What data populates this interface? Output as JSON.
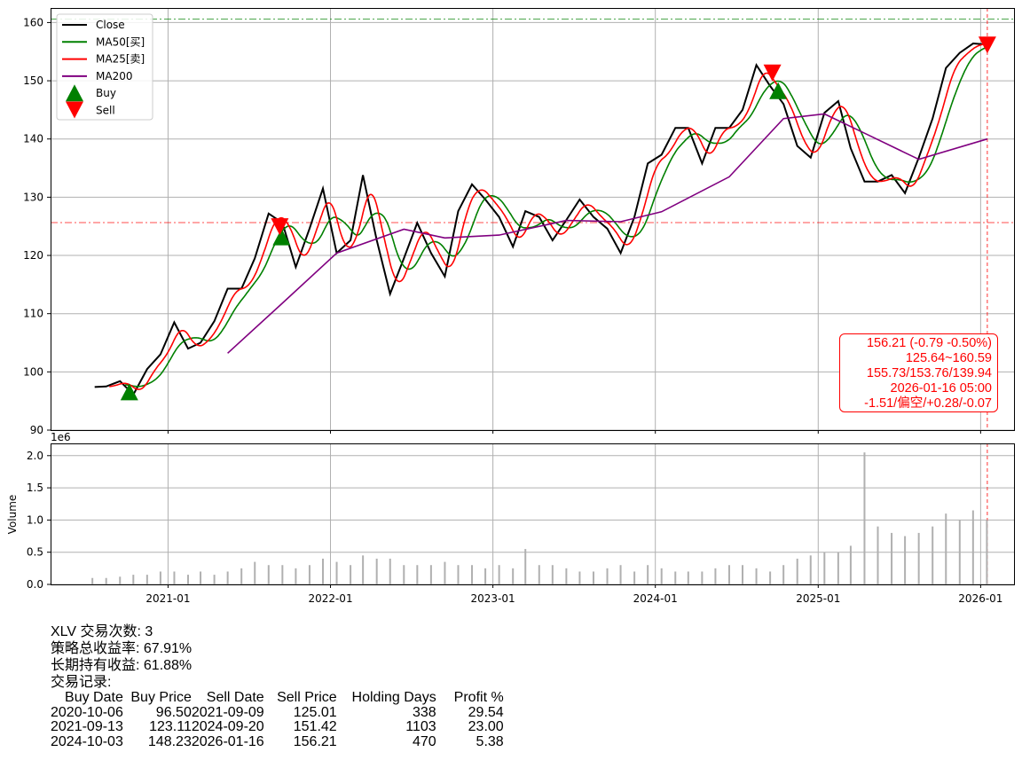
{
  "chart_data": [
    {
      "type": "line",
      "panel": "price",
      "xlim": [
        "2020-04-12",
        "2026-03-17"
      ],
      "ylim": [
        90,
        162.5
      ],
      "yticks": [
        90,
        100,
        110,
        120,
        130,
        140,
        150,
        160
      ],
      "xticks": [
        "2021-01",
        "2022-01",
        "2023-01",
        "2024-01",
        "2025-01",
        "2026-01"
      ],
      "grid": true,
      "legend_position": "top-left",
      "legend": [
        "Close",
        "MA50[买]",
        "MA25[卖]",
        "MA200",
        "Buy",
        "Sell"
      ],
      "colors": {
        "close": "#000000",
        "ma50": "#008000",
        "ma25": "#ff0000",
        "ma200": "#800080",
        "buy": "#008000",
        "sell": "#ff0000"
      },
      "close": {
        "x": [
          "2020-07-20",
          "2020-08-15",
          "2020-09-15",
          "2020-10-15",
          "2020-11-15",
          "2020-12-15",
          "2021-01-15",
          "2021-02-15",
          "2021-03-15",
          "2021-04-15",
          "2021-05-15",
          "2021-06-15",
          "2021-07-15",
          "2021-08-15",
          "2021-09-15",
          "2021-10-15",
          "2021-11-15",
          "2021-12-15",
          "2022-01-15",
          "2022-02-15",
          "2022-03-15",
          "2022-04-15",
          "2022-05-15",
          "2022-06-15",
          "2022-07-15",
          "2022-08-15",
          "2022-09-15",
          "2022-10-15",
          "2022-11-15",
          "2022-12-15",
          "2023-01-15",
          "2023-02-15",
          "2023-03-15",
          "2023-04-15",
          "2023-05-15",
          "2023-06-15",
          "2023-07-15",
          "2023-08-15",
          "2023-09-15",
          "2023-10-15",
          "2023-11-15",
          "2023-12-15",
          "2024-01-15",
          "2024-02-15",
          "2024-03-15",
          "2024-04-15",
          "2024-05-15",
          "2024-06-15",
          "2024-07-15",
          "2024-08-15",
          "2024-09-15",
          "2024-10-15",
          "2024-11-15",
          "2024-12-15",
          "2025-01-15",
          "2025-02-15",
          "2025-03-15",
          "2025-04-15",
          "2025-05-15",
          "2025-06-15",
          "2025-07-15",
          "2025-08-15",
          "2025-09-15",
          "2025-10-15",
          "2025-11-15",
          "2025-12-15",
          "2026-01-16"
        ],
        "y": [
          97.4,
          97.5,
          98.4,
          96.1,
          100.5,
          103,
          108.5,
          104,
          105,
          108.7,
          114.3,
          114.3,
          119.5,
          127.2,
          125.6,
          118,
          124.6,
          131.5,
          120.4,
          122.6,
          133.8,
          122.6,
          113.4,
          119.5,
          125.6,
          120.4,
          116.4,
          127.6,
          132.2,
          129.6,
          126.6,
          121.5,
          127.6,
          126.6,
          122.6,
          126.1,
          129.6,
          126.6,
          124.6,
          120.4,
          126.6,
          135.8,
          137.3,
          141.9,
          141.9,
          135.8,
          141.9,
          141.9,
          145,
          152.7,
          149.1,
          146,
          138.8,
          136.8,
          144.5,
          146.5,
          138.4,
          132.7,
          132.7,
          133.8,
          130.7,
          136.8,
          143.5,
          152.2,
          154.8,
          156.4,
          156.21
        ]
      },
      "ma200": {
        "x": [
          "2021-05-15",
          "2021-09-15",
          "2022-01-15",
          "2022-06-15",
          "2022-09-15",
          "2023-01-15",
          "2023-06-15",
          "2023-10-15",
          "2024-01-15",
          "2024-06-15",
          "2024-10-15",
          "2025-01-15",
          "2025-04-15",
          "2025-08-15",
          "2026-01-16"
        ],
        "y": [
          103.2,
          111.8,
          120.4,
          124.5,
          123,
          123.5,
          126,
          125.8,
          127.5,
          133.5,
          143.5,
          144.3,
          141,
          136.5,
          140
        ]
      },
      "buys": [
        {
          "date": "2020-10-06",
          "price": 96.5
        },
        {
          "date": "2021-09-13",
          "price": 123.11
        },
        {
          "date": "2024-10-03",
          "price": 148.23
        }
      ],
      "sells": [
        {
          "date": "2021-09-09",
          "price": 125.01
        },
        {
          "date": "2024-09-20",
          "price": 151.42
        },
        {
          "date": "2026-01-16",
          "price": 156.21
        }
      ],
      "hlines": [
        {
          "value": 160.59,
          "color": "#008000"
        },
        {
          "value": 125.64,
          "color": "#ff0000"
        }
      ],
      "vline": {
        "date": "2026-01-16",
        "color": "#ff0000"
      }
    },
    {
      "type": "bar",
      "panel": "volume",
      "ylabel": "Volume",
      "scale_label": "1e6",
      "ylim": [
        0,
        2.19
      ],
      "yticks": [
        "0.0",
        "0.5",
        "1.0",
        "1.5",
        "2.0"
      ],
      "grid": true,
      "color": "#b0b0b0",
      "x": [
        "2020-07",
        "2020-08",
        "2020-09",
        "2020-10",
        "2020-11",
        "2020-12",
        "2021-01",
        "2021-02",
        "2021-03",
        "2021-04",
        "2021-05",
        "2021-06",
        "2021-07",
        "2021-08",
        "2021-09",
        "2021-10",
        "2021-11",
        "2021-12",
        "2022-01",
        "2022-02",
        "2022-03",
        "2022-04",
        "2022-05",
        "2022-06",
        "2022-07",
        "2022-08",
        "2022-09",
        "2022-10",
        "2022-11",
        "2022-12",
        "2023-01",
        "2023-02",
        "2023-03",
        "2023-04",
        "2023-05",
        "2023-06",
        "2023-07",
        "2023-08",
        "2023-09",
        "2023-10",
        "2023-11",
        "2023-12",
        "2024-01",
        "2024-02",
        "2024-03",
        "2024-04",
        "2024-05",
        "2024-06",
        "2024-07",
        "2024-08",
        "2024-09",
        "2024-10",
        "2024-11",
        "2024-12",
        "2025-01",
        "2025-02",
        "2025-03",
        "2025-04",
        "2025-05",
        "2025-06",
        "2025-07",
        "2025-08",
        "2025-09",
        "2025-10",
        "2025-11",
        "2025-12",
        "2026-01"
      ],
      "values": [
        0.1,
        0.1,
        0.12,
        0.15,
        0.15,
        0.2,
        0.2,
        0.15,
        0.2,
        0.15,
        0.2,
        0.25,
        0.35,
        0.3,
        0.3,
        0.25,
        0.3,
        0.4,
        0.35,
        0.3,
        0.45,
        0.4,
        0.4,
        0.3,
        0.3,
        0.3,
        0.35,
        0.3,
        0.3,
        0.25,
        0.3,
        0.25,
        0.55,
        0.3,
        0.3,
        0.25,
        0.2,
        0.2,
        0.25,
        0.3,
        0.2,
        0.3,
        0.25,
        0.2,
        0.2,
        0.2,
        0.25,
        0.3,
        0.3,
        0.25,
        0.2,
        0.3,
        0.4,
        0.45,
        0.5,
        0.5,
        0.6,
        2.05,
        0.9,
        0.8,
        0.75,
        0.8,
        0.9,
        1.1,
        1.0,
        1.15,
        1.0
      ]
    }
  ],
  "info_box": [
    "156.21 (-0.79 -0.50%)",
    "125.64~160.59",
    "155.73/153.76/139.94",
    "2026-01-16 05:00",
    "-1.51/偏空/+0.28/-0.07"
  ],
  "summary": {
    "line1": "XLV 交易次数: 3",
    "line2": "策略总收益率: 67.91%",
    "line3": "长期持有收益: 61.88%",
    "line4": "交易记录:",
    "headers": [
      "Buy Date",
      "Buy Price",
      "Sell Date",
      "Sell Price",
      "Holding Days",
      "Profit %"
    ],
    "rows": [
      [
        "2020-10-06",
        "96.50",
        "2021-09-09",
        "125.01",
        "338",
        "29.54"
      ],
      [
        "2021-09-13",
        "123.11",
        "2024-09-20",
        "151.42",
        "1103",
        "23.00"
      ],
      [
        "2024-10-03",
        "148.23",
        "2026-01-16",
        "156.21",
        "470",
        "5.38"
      ]
    ]
  }
}
